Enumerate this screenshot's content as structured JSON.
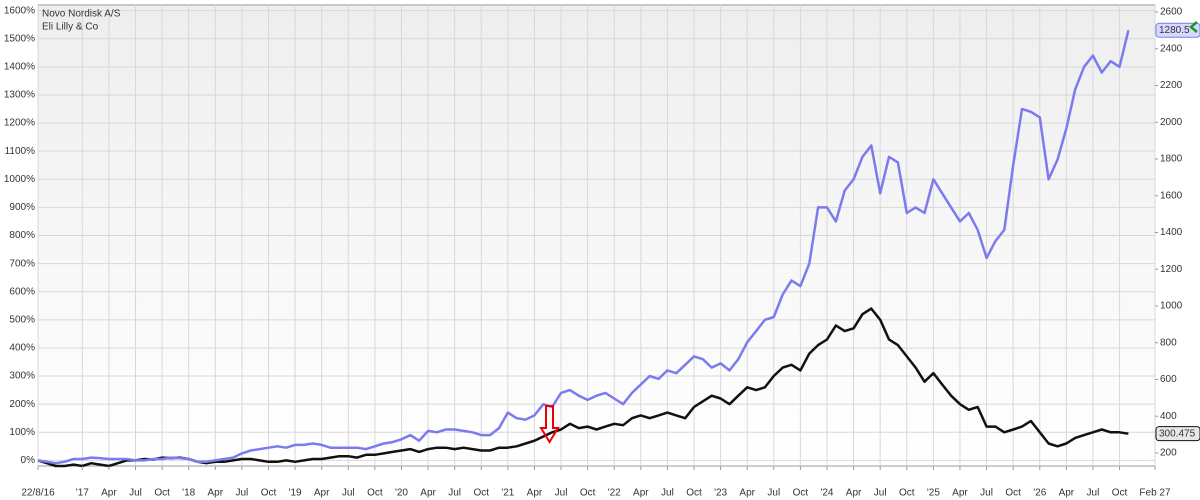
{
  "chart_data": {
    "type": "line",
    "x": [
      "2016-08",
      "2016-09",
      "2016-10",
      "2016-11",
      "2016-12",
      "2017-01",
      "2017-02",
      "2017-03",
      "2017-04",
      "2017-05",
      "2017-06",
      "2017-07",
      "2017-08",
      "2017-09",
      "2017-10",
      "2017-11",
      "2017-12",
      "2018-01",
      "2018-02",
      "2018-03",
      "2018-04",
      "2018-05",
      "2018-06",
      "2018-07",
      "2018-08",
      "2018-09",
      "2018-10",
      "2018-11",
      "2018-12",
      "2019-01",
      "2019-02",
      "2019-03",
      "2019-04",
      "2019-05",
      "2019-06",
      "2019-07",
      "2019-08",
      "2019-09",
      "2019-10",
      "2019-11",
      "2019-12",
      "2020-01",
      "2020-02",
      "2020-03",
      "2020-04",
      "2020-05",
      "2020-06",
      "2020-07",
      "2020-08",
      "2020-09",
      "2020-10",
      "2020-11",
      "2020-12",
      "2021-01",
      "2021-02",
      "2021-03",
      "2021-04",
      "2021-05",
      "2021-06",
      "2021-07",
      "2021-08",
      "2021-09",
      "2021-10",
      "2021-11",
      "2021-12",
      "2022-01",
      "2022-02",
      "2022-03",
      "2022-04",
      "2022-05",
      "2022-06",
      "2022-07",
      "2022-08",
      "2022-09",
      "2022-10",
      "2022-11",
      "2022-12",
      "2023-01",
      "2023-02",
      "2023-03",
      "2023-04",
      "2023-05",
      "2023-06",
      "2023-07",
      "2023-08",
      "2023-09",
      "2023-10",
      "2023-11",
      "2023-12",
      "2024-01",
      "2024-02",
      "2024-03",
      "2024-04",
      "2024-05",
      "2024-06",
      "2024-07",
      "2024-08",
      "2024-09",
      "2024-10",
      "2024-11",
      "2024-12",
      "2025-01",
      "2025-02",
      "2025-03",
      "2025-04",
      "2025-05",
      "2025-06",
      "2025-07",
      "2025-08",
      "2025-09",
      "2025-10",
      "2025-11",
      "2025-12",
      "2026-01",
      "2026-02",
      "2026-03",
      "2026-04",
      "2026-05",
      "2026-06",
      "2026-07",
      "2026-08",
      "2026-09",
      "2026-10",
      "2026-11"
    ],
    "series": [
      {
        "name": "Novo Nordisk A/S",
        "color": "#111111",
        "last_label": 300.475,
        "values": [
          0,
          -10,
          -20,
          -20,
          -15,
          -20,
          -10,
          -15,
          -20,
          -10,
          0,
          0,
          5,
          3,
          10,
          8,
          10,
          5,
          -5,
          -10,
          -5,
          -5,
          0,
          5,
          5,
          0,
          -5,
          -5,
          0,
          -5,
          0,
          5,
          5,
          10,
          15,
          15,
          10,
          20,
          20,
          25,
          30,
          35,
          40,
          30,
          40,
          45,
          45,
          40,
          45,
          40,
          35,
          35,
          45,
          45,
          50,
          60,
          70,
          85,
          100,
          110,
          130,
          115,
          120,
          110,
          120,
          130,
          125,
          150,
          160,
          150,
          160,
          170,
          160,
          150,
          190,
          210,
          230,
          220,
          200,
          230,
          260,
          250,
          260,
          300,
          330,
          340,
          320,
          380,
          410,
          430,
          480,
          460,
          470,
          520,
          540,
          500,
          430,
          410,
          370,
          330,
          280,
          310,
          270,
          230,
          200,
          180,
          190,
          120,
          120,
          100,
          110,
          120,
          140,
          100,
          60,
          50,
          60,
          80,
          90,
          100,
          110,
          100,
          100,
          95
        ]
      },
      {
        "name": "Eli Lilly & Co",
        "color": "#7b7bef",
        "last_label": 1280.5,
        "values": [
          0,
          -5,
          -10,
          -5,
          5,
          5,
          10,
          8,
          5,
          5,
          5,
          0,
          0,
          5,
          5,
          10,
          8,
          5,
          -5,
          -5,
          0,
          5,
          10,
          25,
          35,
          40,
          45,
          50,
          45,
          55,
          55,
          60,
          55,
          45,
          45,
          45,
          45,
          40,
          50,
          60,
          65,
          75,
          90,
          70,
          105,
          100,
          110,
          110,
          105,
          100,
          90,
          90,
          115,
          170,
          150,
          145,
          160,
          200,
          190,
          240,
          250,
          230,
          215,
          230,
          240,
          220,
          200,
          240,
          270,
          300,
          290,
          320,
          310,
          340,
          370,
          360,
          330,
          345,
          320,
          360,
          420,
          460,
          500,
          510,
          590,
          640,
          620,
          700,
          900,
          900,
          850,
          960,
          1000,
          1080,
          1120,
          950,
          1080,
          1060,
          880,
          900,
          880,
          1000,
          950,
          900,
          850,
          880,
          820,
          720,
          780,
          820,
          1050,
          1250,
          1240,
          1220,
          1000,
          1070,
          1180,
          1320,
          1400,
          1440,
          1380,
          1420,
          1400,
          1530
        ]
      }
    ],
    "xlim": [
      "2016-08",
      "2027-02"
    ],
    "xticks": [
      {
        "value": "2016-08",
        "label": "22/8/16"
      },
      {
        "value": "2017-01",
        "label": "'17"
      },
      {
        "value": "2017-04",
        "label": "Apr"
      },
      {
        "value": "2017-07",
        "label": "Jul"
      },
      {
        "value": "2017-10",
        "label": "Oct"
      },
      {
        "value": "2018-01",
        "label": "'18"
      },
      {
        "value": "2018-04",
        "label": "Apr"
      },
      {
        "value": "2018-07",
        "label": "Jul"
      },
      {
        "value": "2018-10",
        "label": "Oct"
      },
      {
        "value": "2019-01",
        "label": "'19"
      },
      {
        "value": "2019-04",
        "label": "Apr"
      },
      {
        "value": "2019-07",
        "label": "Jul"
      },
      {
        "value": "2019-10",
        "label": "Oct"
      },
      {
        "value": "2020-01",
        "label": "'20"
      },
      {
        "value": "2020-04",
        "label": "Apr"
      },
      {
        "value": "2020-07",
        "label": "Jul"
      },
      {
        "value": "2020-10",
        "label": "Oct"
      },
      {
        "value": "2021-01",
        "label": "'21"
      },
      {
        "value": "2021-04",
        "label": "Apr"
      },
      {
        "value": "2021-07",
        "label": "Jul"
      },
      {
        "value": "2021-10",
        "label": "Oct"
      },
      {
        "value": "2022-01",
        "label": "'22"
      },
      {
        "value": "2022-04",
        "label": "Apr"
      },
      {
        "value": "2022-07",
        "label": "Jul"
      },
      {
        "value": "2022-10",
        "label": "Oct"
      },
      {
        "value": "2023-01",
        "label": "'23"
      },
      {
        "value": "2023-04",
        "label": "Apr"
      },
      {
        "value": "2023-07",
        "label": "Jul"
      },
      {
        "value": "2023-10",
        "label": "Oct"
      },
      {
        "value": "2024-01",
        "label": "'24"
      },
      {
        "value": "2024-04",
        "label": "Apr"
      },
      {
        "value": "2024-07",
        "label": "Jul"
      },
      {
        "value": "2024-10",
        "label": "Oct"
      },
      {
        "value": "2025-01",
        "label": "'25"
      },
      {
        "value": "2025-04",
        "label": "Apr"
      },
      {
        "value": "2025-07",
        "label": "Jul"
      },
      {
        "value": "2025-10",
        "label": "Oct"
      },
      {
        "value": "2026-01",
        "label": "'26"
      },
      {
        "value": "2026-04",
        "label": "Apr"
      },
      {
        "value": "2026-07",
        "label": "Jul"
      },
      {
        "value": "2026-10",
        "label": "Oct"
      },
      {
        "value": "2027-02",
        "label": "Feb 27"
      }
    ],
    "ylim": [
      -20,
      1620
    ],
    "yticks": [
      {
        "value": 0,
        "label": "0%"
      },
      {
        "value": 100,
        "label": "100%"
      },
      {
        "value": 200,
        "label": "200%"
      },
      {
        "value": 300,
        "label": "300%"
      },
      {
        "value": 400,
        "label": "400%"
      },
      {
        "value": 500,
        "label": "500%"
      },
      {
        "value": 600,
        "label": "600%"
      },
      {
        "value": 700,
        "label": "700%"
      },
      {
        "value": 800,
        "label": "800%"
      },
      {
        "value": 900,
        "label": "900%"
      },
      {
        "value": 1000,
        "label": "1000%"
      },
      {
        "value": 1100,
        "label": "1100%"
      },
      {
        "value": 1200,
        "label": "1200%"
      },
      {
        "value": 1300,
        "label": "1300%"
      },
      {
        "value": 1400,
        "label": "1400%"
      },
      {
        "value": 1500,
        "label": "1500%"
      },
      {
        "value": 1600,
        "label": "1600%"
      }
    ],
    "y2lim": [
      129,
      2638
    ],
    "y2ticks": [
      200,
      400,
      600,
      800,
      1000,
      1200,
      1400,
      1600,
      1800,
      2000,
      2200,
      2400,
      2600
    ],
    "grid": true
  }
}
